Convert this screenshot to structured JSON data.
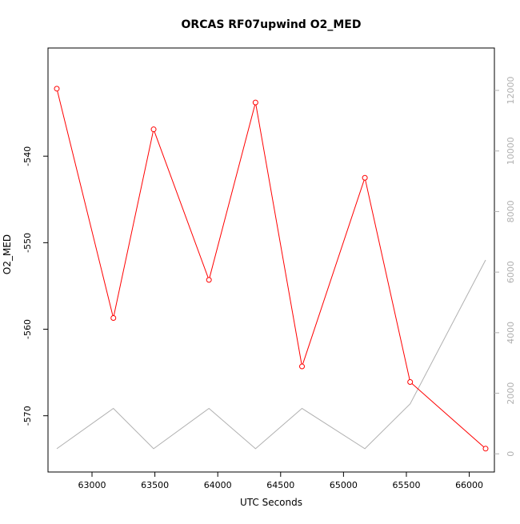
{
  "chart_data": {
    "type": "line",
    "title": "ORCAS RF07upwind O2_MED",
    "xlabel": "UTC Seconds",
    "ylabel": "O2_MED",
    "xlim": [
      62650,
      66200
    ],
    "ylim": [
      -576.5,
      -527.5
    ],
    "y2lim": [
      -600,
      13400
    ],
    "x_ticks": [
      63000,
      63500,
      64000,
      64500,
      65000,
      65500,
      66000
    ],
    "y_ticks": [
      -540,
      -550,
      -560,
      -570
    ],
    "y2_ticks": [
      0,
      2000,
      4000,
      6000,
      8000,
      10000,
      12000
    ],
    "grid": false,
    "series": [
      {
        "axis": "left",
        "color": "#ff0000",
        "markers": true,
        "x": [
          62720,
          63170,
          63490,
          63930,
          64300,
          64670,
          65170,
          65530,
          66130
        ],
        "y": [
          -532.2,
          -558.7,
          -536.9,
          -554.3,
          -533.8,
          -564.3,
          -542.5,
          -566.1,
          -573.8
        ]
      },
      {
        "axis": "right",
        "color": "#b0b0b0",
        "markers": false,
        "x": [
          62720,
          63170,
          63490,
          63930,
          64300,
          64670,
          65170,
          65530,
          66130
        ],
        "y": [
          170,
          1500,
          170,
          1500,
          170,
          1500,
          170,
          1650,
          6400
        ]
      }
    ]
  }
}
